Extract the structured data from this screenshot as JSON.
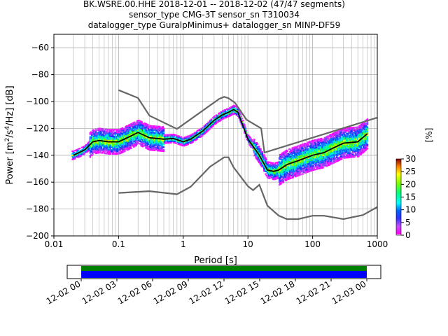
{
  "chart_data": [
    {
      "type": "heatmap",
      "title_lines": [
        "BK.WSRE.00.HHE   2018-12-01 -- 2018-12-02  (47/47 segments)",
        "sensor_type CMG-3T sensor_sn T310034",
        "datalogger_type GuralpMinimus+ datalogger_sn MINP-DF59"
      ],
      "xlabel": "Period [s]",
      "ylabel_parts": [
        "Power [m",
        "2",
        "/s",
        "4",
        "/Hz] [dB]"
      ],
      "xscale": "log",
      "xlim": [
        0.01,
        1000
      ],
      "ylim": [
        -200,
        -50
      ],
      "x_ticks": [
        0.01,
        0.1,
        1,
        10,
        100,
        1000
      ],
      "x_tick_labels": [
        "0.01",
        "0.1",
        "1",
        "10",
        "100",
        "1000"
      ],
      "y_ticks": [
        -200,
        -180,
        -160,
        -140,
        -120,
        -100,
        -80,
        -60
      ],
      "y_tick_labels": [
        "−200",
        "−180",
        "−160",
        "−140",
        "−120",
        "−100",
        "−80",
        "−60"
      ],
      "grid": true,
      "series": [
        {
          "name": "",
          "color": "#666666",
          "x": [
            0.1,
            0.2,
            0.3,
            0.8,
            3.6,
            4.3,
            5.0,
            6.3,
            9.5,
            16,
            18,
            1000
          ],
          "y": [
            -91.5,
            -97.4,
            -110.5,
            -120.4,
            -98.0,
            -96.5,
            -97.5,
            -101.0,
            -113.5,
            -120.0,
            -138.0,
            -112.0
          ]
        },
        {
          "name": "",
          "color": "#666666",
          "x": [
            0.1,
            0.3,
            0.8,
            1.3,
            2.6,
            4.3,
            5.0,
            6.0,
            10.0,
            12.0,
            15.0,
            20.0,
            30.0,
            40.0,
            60.0,
            100.0,
            150.0,
            300.0,
            600.0,
            1000.0
          ],
          "y": [
            -168.0,
            -166.7,
            -169.0,
            -163.5,
            -148.5,
            -141.5,
            -141.5,
            -149.0,
            -163.0,
            -166.0,
            -162.0,
            -177.5,
            -185.0,
            -187.5,
            -187.5,
            -185.0,
            -185.0,
            -187.5,
            -184.5,
            -178.5
          ]
        },
        {
          "name": "",
          "color": "#000000",
          "x": [
            0.02,
            0.03,
            0.04,
            0.05,
            0.07,
            0.1,
            0.15,
            0.2,
            0.3,
            0.5,
            0.7,
            1.0,
            1.3,
            2.0,
            3.0,
            4.0,
            5.0,
            6.0,
            7.0,
            10.0,
            15.0,
            20.0,
            25.0,
            30.0,
            40.0,
            60.0,
            100.0,
            150.0,
            200.0,
            300.0,
            500.0,
            700.0
          ],
          "y": [
            -140.0,
            -136.0,
            -130.0,
            -129.0,
            -130.0,
            -130.0,
            -126.0,
            -123.0,
            -127.0,
            -128.0,
            -127.5,
            -130.0,
            -128.0,
            -122.0,
            -114.0,
            -110.0,
            -108.0,
            -106.0,
            -108.0,
            -128.0,
            -140.0,
            -151.0,
            -152.0,
            -151.0,
            -147.0,
            -144.0,
            -140.0,
            -138.0,
            -135.0,
            -131.0,
            -130.0,
            -124.0
          ]
        }
      ],
      "colorbar": {
        "label": "[%]",
        "range": [
          0,
          30
        ],
        "tick_labels": [
          "0",
          "5",
          "10",
          "15",
          "20",
          "25",
          "30"
        ]
      },
      "time_axis": {
        "tick_labels": [
          "12-02 00",
          "12-02 03",
          "12-02 06",
          "12-02 09",
          "12-02 12",
          "12-02 15",
          "12-02 18",
          "12-02 21",
          "12-03 00"
        ],
        "coverage_colors": [
          "#008000",
          "#0000ff"
        ]
      }
    }
  ]
}
